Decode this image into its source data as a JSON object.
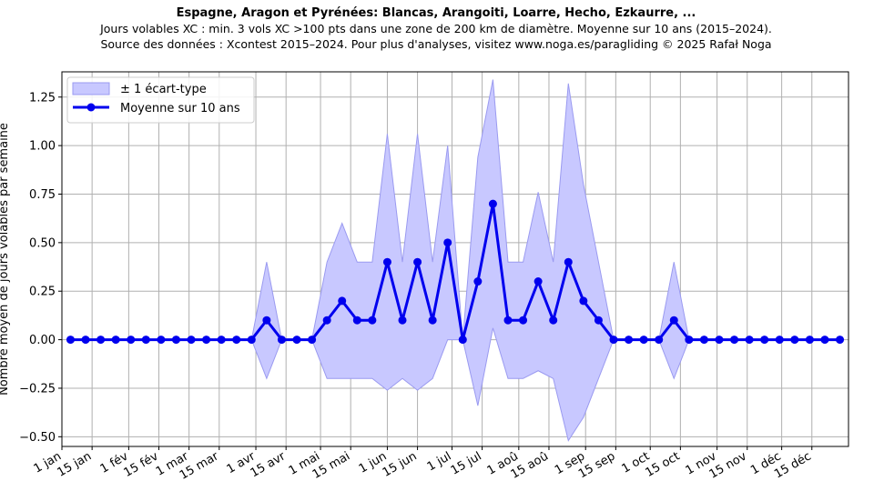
{
  "chart_data": {
    "type": "line",
    "title": "Espagne, Aragon et Pyrénées: Blancas, Arangoiti, Loarre, Hecho, Ezkaurre, ...",
    "subtitle_lines": [
      "Jours volables XC : min. 3 vols XC >100 pts dans une zone de 200 km de diamètre. Moyenne sur 10 ans (2015–2024).",
      "Source des données : Xcontest 2015–2024. Pour plus d'analyses, visitez www.noga.es/paragliding © 2025 Rafał Noga"
    ],
    "xlabel": "",
    "ylabel": "Nombre moyen de jours volables par semaine",
    "x_unit": "day of year",
    "xlim": [
      1,
      366
    ],
    "ylim": [
      -0.55,
      1.38
    ],
    "yticks": [
      -0.5,
      -0.25,
      0.0,
      0.25,
      0.5,
      0.75,
      1.0,
      1.25
    ],
    "ytick_labels": [
      "−0.50",
      "−0.25",
      "0.00",
      "0.25",
      "0.50",
      "0.75",
      "1.00",
      "1.25"
    ],
    "xticks": [
      1,
      15,
      32,
      46,
      60,
      74,
      91,
      105,
      121,
      135,
      152,
      166,
      182,
      196,
      213,
      227,
      244,
      258,
      274,
      288,
      305,
      319,
      335,
      349
    ],
    "xtick_labels": [
      "1 jan",
      "15 jan",
      "1 fév",
      "15 fév",
      "1 mar",
      "15 mar",
      "1 avr",
      "15 avr",
      "1 mai",
      "15 mai",
      "1 jun",
      "15 jun",
      "1 jul",
      "15 jul",
      "1 aoû",
      "15 aoû",
      "1 sep",
      "15 sep",
      "1 oct",
      "15 oct",
      "1 nov",
      "15 nov",
      "1 déc",
      "15 déc"
    ],
    "grid": true,
    "legend_position": "top-left",
    "legend": [
      "± 1 écart-type",
      "Moyenne sur 10 ans"
    ],
    "colors": {
      "line": "#0000ee",
      "band": "#c8c8ff",
      "band_edge": "#9a9af0"
    },
    "x": [
      5,
      12,
      19,
      26,
      33,
      40,
      47,
      54,
      61,
      68,
      75,
      82,
      89,
      96,
      103,
      110,
      117,
      124,
      131,
      138,
      145,
      152,
      159,
      166,
      173,
      180,
      187,
      194,
      201,
      208,
      215,
      222,
      229,
      236,
      243,
      250,
      257,
      264,
      271,
      278,
      285,
      292,
      299,
      306,
      313,
      320,
      327,
      334,
      341,
      348,
      355,
      362
    ],
    "series": [
      {
        "name": "Moyenne sur 10 ans",
        "values": [
          0,
          0,
          0,
          0,
          0,
          0,
          0,
          0,
          0,
          0,
          0,
          0,
          0,
          0.1,
          0,
          0,
          0,
          0.1,
          0.2,
          0.1,
          0.1,
          0.4,
          0.1,
          0.4,
          0.1,
          0.5,
          0,
          0.3,
          0.7,
          0.1,
          0.1,
          0.3,
          0.1,
          0.4,
          0.2,
          0.1,
          0,
          0,
          0,
          0,
          0.1,
          0,
          0,
          0,
          0,
          0,
          0,
          0,
          0,
          0,
          0,
          0
        ]
      }
    ],
    "band": {
      "name": "± 1 écart-type",
      "upper": [
        0,
        0,
        0,
        0,
        0,
        0,
        0,
        0,
        0,
        0,
        0,
        0,
        0,
        0.4,
        0,
        0,
        0,
        0.4,
        0.6,
        0.4,
        0.4,
        1.06,
        0.4,
        1.06,
        0.4,
        1.0,
        0,
        0.94,
        1.34,
        0.4,
        0.4,
        0.76,
        0.4,
        1.32,
        0.8,
        0.4,
        0,
        0,
        0,
        0,
        0.4,
        0,
        0,
        0,
        0,
        0,
        0,
        0,
        0,
        0,
        0,
        0
      ],
      "lower": [
        0,
        0,
        0,
        0,
        0,
        0,
        0,
        0,
        0,
        0,
        0,
        0,
        0,
        -0.2,
        0,
        0,
        0,
        -0.2,
        -0.2,
        -0.2,
        -0.2,
        -0.26,
        -0.2,
        -0.26,
        -0.2,
        0,
        0,
        -0.34,
        0.06,
        -0.2,
        -0.2,
        -0.16,
        -0.2,
        -0.52,
        -0.4,
        -0.2,
        0,
        0,
        0,
        0,
        -0.2,
        0,
        0,
        0,
        0,
        0,
        0,
        0,
        0,
        0,
        0,
        0
      ]
    }
  }
}
